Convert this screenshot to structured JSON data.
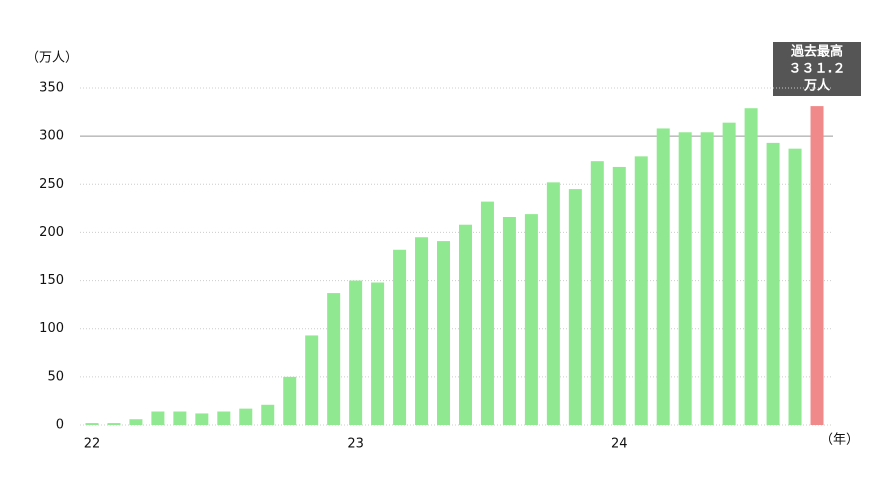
{
  "chart_data": {
    "type": "bar",
    "y_unit_label": "（万人）",
    "x_unit_label": "（年）",
    "categories": [
      "22",
      null,
      null,
      null,
      null,
      null,
      null,
      null,
      null,
      null,
      null,
      null,
      "23",
      null,
      null,
      null,
      null,
      null,
      null,
      null,
      null,
      null,
      null,
      null,
      "24",
      null,
      null,
      null,
      null,
      null,
      null,
      null,
      null,
      null
    ],
    "values": [
      2,
      2,
      6,
      14,
      14,
      12,
      14,
      17,
      21,
      50,
      93,
      137,
      150,
      148,
      182,
      195,
      191,
      208,
      232,
      216,
      219,
      252,
      245,
      274,
      268,
      279,
      308,
      304,
      304,
      314,
      329,
      293,
      287,
      331.2
    ],
    "colors": [
      "#90e890",
      "#90e890",
      "#90e890",
      "#90e890",
      "#90e890",
      "#90e890",
      "#90e890",
      "#90e890",
      "#90e890",
      "#90e890",
      "#90e890",
      "#90e890",
      "#90e890",
      "#90e890",
      "#90e890",
      "#90e890",
      "#90e890",
      "#90e890",
      "#90e890",
      "#90e890",
      "#90e890",
      "#90e890",
      "#90e890",
      "#90e890",
      "#90e890",
      "#90e890",
      "#90e890",
      "#90e890",
      "#90e890",
      "#90e890",
      "#90e890",
      "#90e890",
      "#90e890",
      "#f08a8a"
    ],
    "annotation": [
      "過去最高",
      "３３１.２",
      "万人"
    ],
    "ylim": [
      0,
      350
    ],
    "yticks": [
      0,
      50,
      100,
      150,
      200,
      250,
      300,
      350
    ],
    "grid": true
  }
}
